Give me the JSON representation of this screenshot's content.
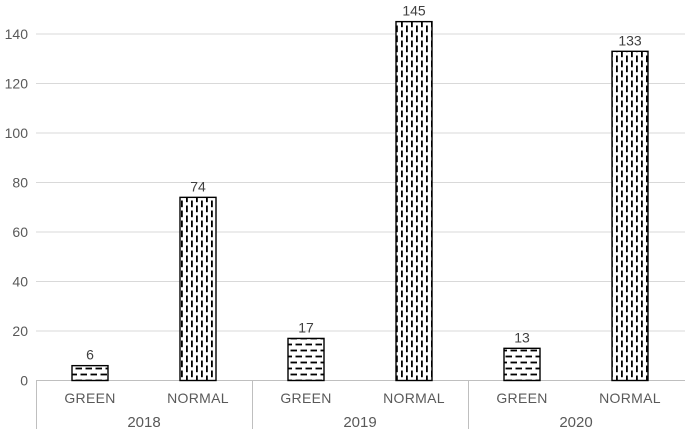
{
  "chart_data": {
    "type": "bar",
    "title": "",
    "xlabel": "",
    "ylabel": "",
    "legend": "none",
    "data_labels": true,
    "y_axis": {
      "min": 0,
      "max": 160,
      "ticks": [
        0,
        20,
        40,
        60,
        80,
        100,
        120,
        140
      ],
      "gridlines": true
    },
    "categories": [
      "GREEN",
      "NORMAL"
    ],
    "groups": [
      {
        "label": "2018",
        "bars": [
          {
            "category": "GREEN",
            "value": 6,
            "pattern": "horizontal-dash"
          },
          {
            "category": "NORMAL",
            "value": 74,
            "pattern": "vertical-dash"
          }
        ]
      },
      {
        "label": "2019",
        "bars": [
          {
            "category": "GREEN",
            "value": 17,
            "pattern": "horizontal-dash"
          },
          {
            "category": "NORMAL",
            "value": 145,
            "pattern": "vertical-dash"
          }
        ]
      },
      {
        "label": "2020",
        "bars": [
          {
            "category": "GREEN",
            "value": 13,
            "pattern": "horizontal-dash"
          },
          {
            "category": "NORMAL",
            "value": 133,
            "pattern": "vertical-dash"
          }
        ]
      }
    ],
    "colors": {
      "background": "#ffffff",
      "bar_fill": "#ffffff",
      "bar_outline": "#000000",
      "pattern_ink": "#000000",
      "gridline": "#d9d9d9",
      "axis_line": "#bfbfbf",
      "tick_label": "#595959",
      "category_label": "#595959",
      "group_label": "#595959",
      "value_label": "#404040"
    }
  }
}
